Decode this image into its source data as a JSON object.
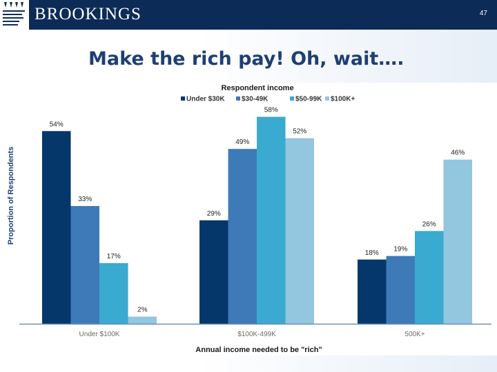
{
  "header": {
    "logo_text": "BROOKINGS",
    "slide_number": "47"
  },
  "slide_title": "Make the rich pay! Oh, wait….",
  "colors": {
    "header_bg": "#0d2b57",
    "title": "#1f3f73",
    "series": [
      "#05376a",
      "#3f7ab8",
      "#3aaad0",
      "#93c6df"
    ]
  },
  "chart_data": {
    "type": "bar",
    "legend_title": "Respondent income",
    "legend_position": "top-center",
    "categories": [
      "Under $100K",
      "$100K-499K",
      "500K+"
    ],
    "series": [
      {
        "name": "Under $30K",
        "values": [
          54,
          29,
          18
        ],
        "labels": [
          "54%",
          "29%",
          "18%"
        ]
      },
      {
        "name": "$30-49K",
        "values": [
          33,
          49,
          19
        ],
        "labels": [
          "33%",
          "49%",
          "19%"
        ]
      },
      {
        "name": "$50-99K",
        "values": [
          17,
          58,
          26
        ],
        "labels": [
          "17%",
          "58%",
          "26%"
        ]
      },
      {
        "name": "$100K+",
        "values": [
          2,
          52,
          46
        ],
        "labels": [
          "2%",
          "52%",
          "46%"
        ]
      }
    ],
    "xlabel": "Annual  income  needed  to  be \"rich\"",
    "ylabel": "Proportion of Respondents",
    "ylim": [
      0,
      60
    ],
    "grid": false
  }
}
